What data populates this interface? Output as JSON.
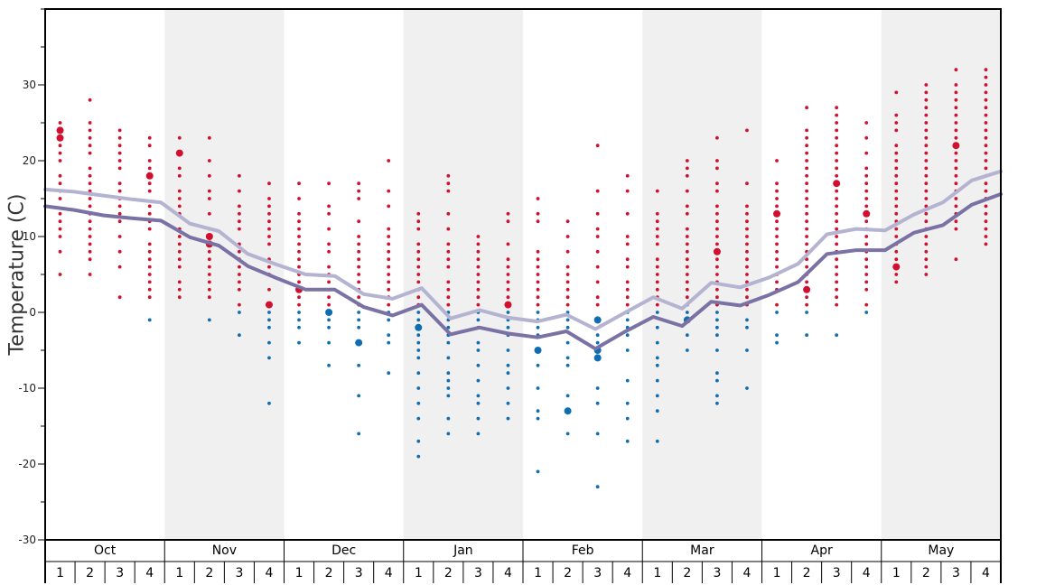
{
  "chart_data": {
    "type": "scatter",
    "ylabel": "Temperature (C)",
    "ylim": [
      -30,
      40
    ],
    "yticks": [
      30,
      20,
      10,
      0,
      -10,
      -20,
      -30
    ],
    "months": [
      "Oct",
      "Nov",
      "Dec",
      "Jan",
      "Feb",
      "Mar",
      "Apr",
      "May"
    ],
    "weeks": [
      1,
      2,
      3,
      4
    ],
    "shaded_months": [
      "Nov",
      "Jan",
      "Mar",
      "May"
    ],
    "colors": {
      "warm": "#d0102e",
      "cold": "#0f6eb1",
      "upper_line": "#b4b3d1",
      "lower_line": "#7a71a4",
      "shade": "#f0f0f0"
    },
    "series": [
      {
        "values": [
          16.2,
          15.9,
          15.4,
          14.9,
          14.5,
          11.7,
          10.7,
          7.7,
          6.3,
          5.0,
          4.8,
          2.4,
          1.8,
          3.2,
          -0.8,
          0.3,
          -0.7,
          -1.2,
          -0.3,
          -2.2,
          -0.1,
          2.0,
          0.5,
          3.9,
          3.3,
          4.6,
          6.4,
          10.3,
          11.0,
          10.8,
          12.9,
          14.5,
          17.4,
          18.6
        ]
      },
      {
        "values": [
          14.0,
          13.5,
          12.8,
          12.4,
          12.1,
          9.9,
          8.8,
          6.1,
          4.5,
          3.0,
          3.0,
          0.7,
          -0.4,
          1.0,
          -2.9,
          -2.0,
          -2.8,
          -3.3,
          -2.5,
          -4.8,
          -2.6,
          -0.6,
          -1.8,
          1.4,
          0.9,
          2.3,
          4.0,
          7.7,
          8.2,
          8.2,
          10.5,
          11.5,
          14.2,
          15.6
        ]
      }
    ],
    "points": [
      {
        "x": "Oct wk1",
        "temps": [
          5,
          8,
          10,
          11,
          12,
          13,
          15,
          16,
          17,
          18,
          20,
          21,
          22,
          23,
          24,
          25
        ]
      },
      {
        "x": "Oct wk2",
        "temps": [
          5,
          7,
          8,
          9,
          10,
          11,
          12,
          13,
          14,
          15,
          16,
          17,
          18,
          19,
          21,
          22,
          23,
          24,
          25,
          28
        ]
      },
      {
        "x": "Oct wk3",
        "temps": [
          2,
          6,
          8,
          10,
          12,
          13,
          14,
          15,
          16,
          17,
          19,
          20,
          21,
          22,
          23,
          24
        ]
      },
      {
        "x": "Oct wk4",
        "temps": [
          -1,
          2,
          3,
          4,
          5,
          6,
          7,
          8,
          9,
          11,
          12,
          13,
          14,
          16,
          17,
          18,
          19,
          20,
          22,
          23
        ]
      },
      {
        "x": "Nov wk1",
        "temps": [
          2,
          3,
          4,
          6,
          7,
          8,
          9,
          10,
          11,
          13,
          14,
          15,
          16,
          18,
          19,
          21,
          23
        ]
      },
      {
        "x": "Nov wk2",
        "temps": [
          -1,
          2,
          3,
          4,
          5,
          6,
          7,
          8,
          9,
          10,
          11,
          13,
          15,
          16,
          18,
          20,
          23
        ]
      },
      {
        "x": "Nov wk3",
        "temps": [
          -3,
          0,
          1,
          3,
          4,
          5,
          6,
          7,
          8,
          9,
          11,
          12,
          13,
          14,
          16,
          18
        ]
      },
      {
        "x": "Nov wk4",
        "temps": [
          -12,
          -6,
          -4,
          -2,
          -1,
          0,
          1,
          3,
          5,
          6,
          7,
          9,
          10,
          11,
          12,
          13,
          14,
          15,
          17
        ]
      },
      {
        "x": "Dec wk1",
        "temps": [
          -4,
          -2,
          -1,
          0,
          1,
          2,
          3,
          4,
          5,
          6,
          7,
          8,
          9,
          10,
          11,
          12,
          13,
          15,
          17
        ]
      },
      {
        "x": "Dec wk2",
        "temps": [
          -7,
          -4,
          -2,
          -1,
          0,
          1,
          2,
          3,
          4,
          5,
          6,
          8,
          9,
          11,
          13,
          14,
          17
        ]
      },
      {
        "x": "Dec wk3",
        "temps": [
          -16,
          -11,
          -7,
          -4,
          -2,
          -1,
          0,
          1,
          2,
          3,
          4,
          5,
          6,
          7,
          8,
          9,
          10,
          12,
          15,
          16,
          17
        ]
      },
      {
        "x": "Dec wk4",
        "temps": [
          -8,
          -4,
          -3,
          -1,
          0,
          1,
          2,
          3,
          4,
          5,
          6,
          7,
          8,
          9,
          10,
          11,
          14,
          16,
          20
        ]
      },
      {
        "x": "Jan wk1",
        "temps": [
          -19,
          -17,
          -14,
          -12,
          -10,
          -8,
          -6,
          -5,
          -4,
          -3,
          -2,
          -1,
          0,
          1,
          2,
          3,
          4,
          5,
          6,
          7,
          8,
          9,
          11,
          12,
          13
        ]
      },
      {
        "x": "Jan wk2",
        "temps": [
          -16,
          -14,
          -11,
          -10,
          -9,
          -8,
          -6,
          -4,
          -3,
          -2,
          -1,
          0,
          1,
          2,
          3,
          4,
          6,
          7,
          8,
          9,
          11,
          13,
          16,
          17,
          18
        ]
      },
      {
        "x": "Jan wk3",
        "temps": [
          -16,
          -14,
          -12,
          -11,
          -9,
          -7,
          -5,
          -4,
          -2,
          -1,
          0,
          1,
          2,
          3,
          4,
          5,
          6,
          7,
          8,
          9,
          10
        ]
      },
      {
        "x": "Jan wk4",
        "temps": [
          -14,
          -12,
          -10,
          -8,
          -7,
          -5,
          -3,
          -2,
          -1,
          0,
          1,
          2,
          3,
          4,
          5,
          6,
          7,
          9,
          12,
          13
        ]
      },
      {
        "x": "Feb wk1",
        "temps": [
          -21,
          -14,
          -13,
          -10,
          -7,
          -5,
          -3,
          -2,
          -1,
          0,
          1,
          2,
          3,
          4,
          5,
          6,
          7,
          8,
          12,
          13,
          15
        ]
      },
      {
        "x": "Feb wk2",
        "temps": [
          -16,
          -13,
          -11,
          -7,
          -6,
          -4,
          -2,
          -1,
          0,
          1,
          2,
          3,
          4,
          5,
          6,
          8,
          10,
          12
        ]
      },
      {
        "x": "Feb wk3",
        "temps": [
          -23,
          -16,
          -12,
          -10,
          -6,
          -5,
          -4,
          -3,
          -1,
          1,
          2,
          4,
          6,
          8,
          10,
          11,
          13,
          16,
          22
        ]
      },
      {
        "x": "Feb wk4",
        "temps": [
          -17,
          -14,
          -12,
          -9,
          -5,
          -3,
          -2,
          -1,
          0,
          1,
          2,
          3,
          4,
          6,
          7,
          9,
          10,
          13,
          16,
          18
        ]
      },
      {
        "x": "Mar wk1",
        "temps": [
          -17,
          -13,
          -11,
          -9,
          -7,
          -6,
          -4,
          -2,
          0,
          1,
          2,
          3,
          4,
          5,
          6,
          7,
          9,
          10,
          11,
          12,
          13,
          16
        ]
      },
      {
        "x": "Mar wk2",
        "temps": [
          -5,
          -3,
          -1,
          0,
          1,
          2,
          3,
          4,
          5,
          6,
          7,
          8,
          9,
          10,
          11,
          13,
          14,
          16,
          18,
          19,
          20
        ]
      },
      {
        "x": "Mar wk3",
        "temps": [
          -12,
          -11,
          -9,
          -8,
          -5,
          -3,
          -2,
          -1,
          0,
          1,
          2,
          3,
          4,
          5,
          6,
          7,
          8,
          9,
          10,
          11,
          12,
          13,
          14,
          16,
          17,
          19,
          20,
          23
        ]
      },
      {
        "x": "Mar wk4",
        "temps": [
          -10,
          -5,
          -2,
          -1,
          1,
          2,
          3,
          4,
          5,
          6,
          7,
          8,
          9,
          10,
          11,
          12,
          13,
          14,
          17,
          24
        ]
      },
      {
        "x": "Apr wk1",
        "temps": [
          -4,
          -3,
          0,
          1,
          3,
          4,
          5,
          6,
          7,
          8,
          9,
          10,
          11,
          12,
          13,
          14,
          15,
          16,
          17,
          20
        ]
      },
      {
        "x": "Apr wk2",
        "temps": [
          -3,
          0,
          1,
          2,
          3,
          4,
          5,
          6,
          7,
          8,
          9,
          10,
          11,
          12,
          13,
          14,
          15,
          16,
          17,
          18,
          19,
          20,
          21,
          22,
          23,
          24,
          27
        ]
      },
      {
        "x": "Apr wk3",
        "temps": [
          -3,
          1,
          2,
          3,
          4,
          5,
          6,
          7,
          8,
          9,
          10,
          11,
          12,
          13,
          14,
          15,
          16,
          17,
          18,
          19,
          20,
          21,
          22,
          23,
          24,
          25,
          26,
          27
        ]
      },
      {
        "x": "Apr wk4",
        "temps": [
          0,
          1,
          3,
          4,
          5,
          6,
          7,
          8,
          9,
          10,
          11,
          12,
          13,
          14,
          15,
          16,
          17,
          18,
          19,
          21,
          23,
          25
        ]
      },
      {
        "x": "May wk1",
        "temps": [
          4,
          5,
          6,
          7,
          8,
          9,
          10,
          11,
          12,
          13,
          14,
          15,
          16,
          17,
          18,
          19,
          20,
          21,
          22,
          24,
          25,
          26,
          29
        ]
      },
      {
        "x": "May wk2",
        "temps": [
          5,
          6,
          7,
          8,
          9,
          10,
          11,
          12,
          13,
          14,
          15,
          16,
          17,
          18,
          19,
          20,
          21,
          22,
          23,
          24,
          25,
          26,
          27,
          28,
          29,
          30
        ]
      },
      {
        "x": "May wk3",
        "temps": [
          7,
          11,
          12,
          13,
          14,
          15,
          16,
          17,
          18,
          19,
          20,
          21,
          22,
          23,
          24,
          25,
          26,
          27,
          28,
          29,
          30,
          32
        ]
      },
      {
        "x": "May wk4",
        "temps": [
          9,
          10,
          11,
          12,
          13,
          14,
          15,
          16,
          17,
          18,
          19,
          20,
          21,
          22,
          23,
          24,
          25,
          26,
          27,
          28,
          29,
          30,
          31,
          32
        ]
      }
    ],
    "big_points": [
      {
        "x": "Oct wk1",
        "temps": [
          23,
          24
        ]
      },
      {
        "x": "Oct wk4",
        "temps": [
          18
        ]
      },
      {
        "x": "Nov wk1",
        "temps": [
          21
        ]
      },
      {
        "x": "Nov wk2",
        "temps": [
          9,
          10
        ]
      },
      {
        "x": "Nov wk4",
        "temps": [
          1
        ]
      },
      {
        "x": "Dec wk1",
        "temps": [
          3
        ]
      },
      {
        "x": "Dec wk2",
        "temps": [
          0
        ]
      },
      {
        "x": "Dec wk3",
        "temps": [
          -4
        ]
      },
      {
        "x": "Jan wk1",
        "temps": [
          -2
        ]
      },
      {
        "x": "Jan wk4",
        "temps": [
          1
        ]
      },
      {
        "x": "Feb wk1",
        "temps": [
          -5
        ]
      },
      {
        "x": "Feb wk2",
        "temps": [
          -13
        ]
      },
      {
        "x": "Feb wk3",
        "temps": [
          -1,
          -5,
          -6
        ]
      },
      {
        "x": "Mar wk2",
        "temps": [
          -1
        ]
      },
      {
        "x": "Mar wk3",
        "temps": [
          8
        ]
      },
      {
        "x": "Apr wk1",
        "temps": [
          13
        ]
      },
      {
        "x": "Apr wk2",
        "temps": [
          3
        ]
      },
      {
        "x": "Apr wk3",
        "temps": [
          17
        ]
      },
      {
        "x": "Apr wk4",
        "temps": [
          13
        ]
      },
      {
        "x": "May wk1",
        "temps": [
          6
        ]
      },
      {
        "x": "May wk3",
        "temps": [
          22
        ]
      }
    ]
  }
}
